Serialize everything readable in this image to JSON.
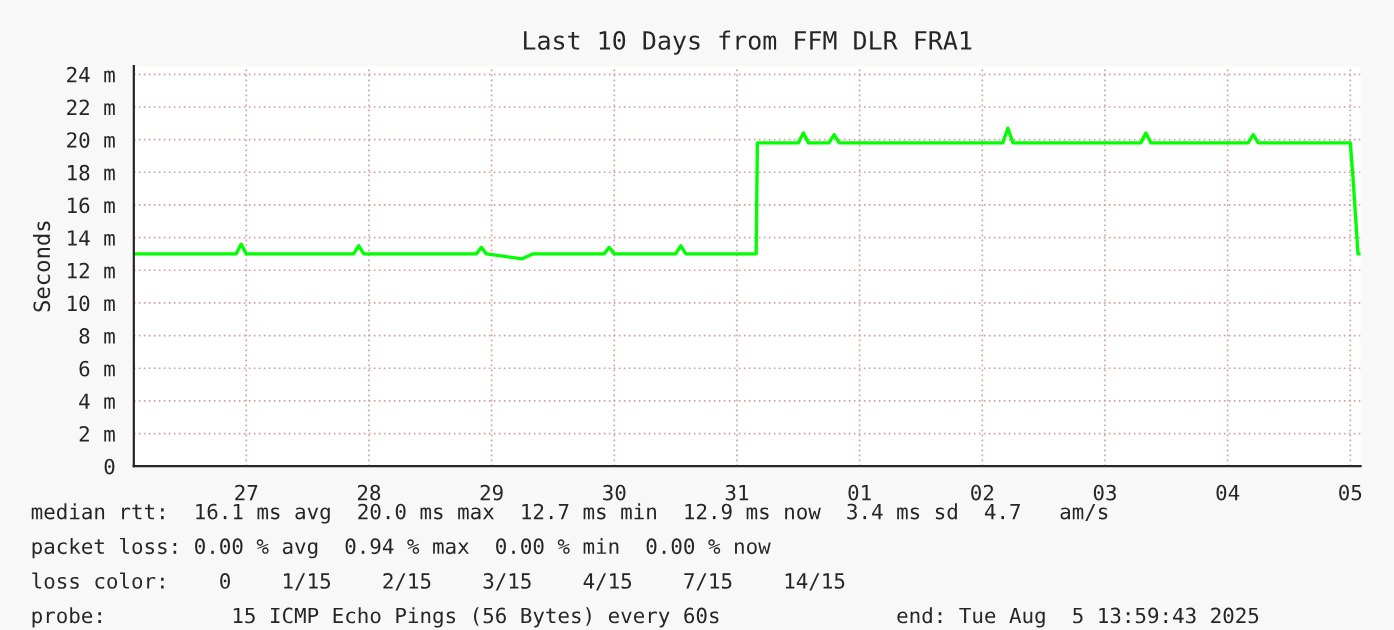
{
  "chart_data": {
    "type": "line",
    "title": "Last 10 Days from FFM DLR FRA1",
    "ylabel": "Seconds",
    "x": [
      "2025-07-26T14:00",
      "2025-07-27T10:00",
      "2025-07-27T11:00",
      "2025-07-27T12:00",
      "2025-07-28T09:00",
      "2025-07-28T10:00",
      "2025-07-28T11:00",
      "2025-07-29T09:00",
      "2025-07-29T10:00",
      "2025-07-29T11:00",
      "2025-07-29T18:00",
      "2025-07-29T20:00",
      "2025-07-30T10:00",
      "2025-07-30T11:00",
      "2025-07-30T12:00",
      "2025-07-31T00:00",
      "2025-07-31T01:00",
      "2025-07-31T02:00",
      "2025-07-31T15:45",
      "2025-07-31T16:00",
      "2025-08-01T00:00",
      "2025-08-01T01:00",
      "2025-08-01T02:00",
      "2025-08-01T06:00",
      "2025-08-01T07:00",
      "2025-08-01T08:00",
      "2025-08-02T16:00",
      "2025-08-02T17:00",
      "2025-08-02T18:00",
      "2025-08-03T19:00",
      "2025-08-03T20:00",
      "2025-08-03T21:00",
      "2025-08-04T16:00",
      "2025-08-04T17:00",
      "2025-08-04T18:00",
      "2025-08-05T12:00",
      "2025-08-05T12:30",
      "2025-08-05T13:30",
      "2025-08-05T14:00"
    ],
    "series": [
      {
        "color": "#00ff00",
        "values": [
          13.0,
          13.0,
          13.6,
          13.0,
          13.0,
          13.5,
          13.0,
          13.0,
          13.4,
          13.0,
          12.7,
          13.0,
          13.0,
          13.4,
          13.0,
          13.0,
          13.5,
          13.0,
          13.0,
          19.8,
          19.8,
          20.4,
          19.8,
          19.8,
          20.3,
          19.8,
          19.8,
          20.7,
          19.8,
          19.8,
          20.4,
          19.8,
          19.8,
          20.3,
          19.8,
          19.8,
          17.8,
          13.0,
          13.0
        ]
      }
    ],
    "xlim": [
      "2025-07-26T14:00",
      "2025-08-05T14:00"
    ],
    "xticks": [
      {
        "value": "2025-07-27T12:00",
        "label": "27"
      },
      {
        "value": "2025-07-28T12:00",
        "label": "28"
      },
      {
        "value": "2025-07-29T12:00",
        "label": "29"
      },
      {
        "value": "2025-07-30T12:00",
        "label": "30"
      },
      {
        "value": "2025-07-31T12:00",
        "label": "31"
      },
      {
        "value": "2025-08-01T12:00",
        "label": "01"
      },
      {
        "value": "2025-08-02T12:00",
        "label": "02"
      },
      {
        "value": "2025-08-03T12:00",
        "label": "03"
      },
      {
        "value": "2025-08-04T12:00",
        "label": "04"
      },
      {
        "value": "2025-08-05T12:00",
        "label": "05"
      }
    ],
    "ylim": [
      0,
      24.5
    ],
    "yticks": [
      0,
      {
        "value": 2,
        "label": "2 m"
      },
      {
        "value": 4,
        "label": "4 m"
      },
      {
        "value": 6,
        "label": "6 m"
      },
      {
        "value": 8,
        "label": "8 m"
      },
      {
        "value": 10,
        "label": "10 m"
      },
      {
        "value": 12,
        "label": "12 m"
      },
      {
        "value": 14,
        "label": "14 m"
      },
      {
        "value": 16,
        "label": "16 m"
      },
      {
        "value": 18,
        "label": "18 m"
      },
      {
        "value": 20,
        "label": "20 m"
      },
      {
        "value": 22,
        "label": "22 m"
      },
      {
        "value": 24,
        "label": "24 m"
      }
    ],
    "grid": true,
    "annotations": [
      "median rtt:  16.1 ms avg  20.0 ms max  12.7 ms min  12.9 ms now  3.4 ms sd  4.7   am/s",
      "packet loss: 0.00 % avg  0.94 % max  0.00 % min  0.00 % now",
      "loss color:    0    1/15    2/15    3/15    4/15    7/15    14/15",
      "probe:          15 ICMP Echo Pings (56 Bytes) every 60s              end: Tue Aug  5 13:59:43 2025"
    ]
  }
}
